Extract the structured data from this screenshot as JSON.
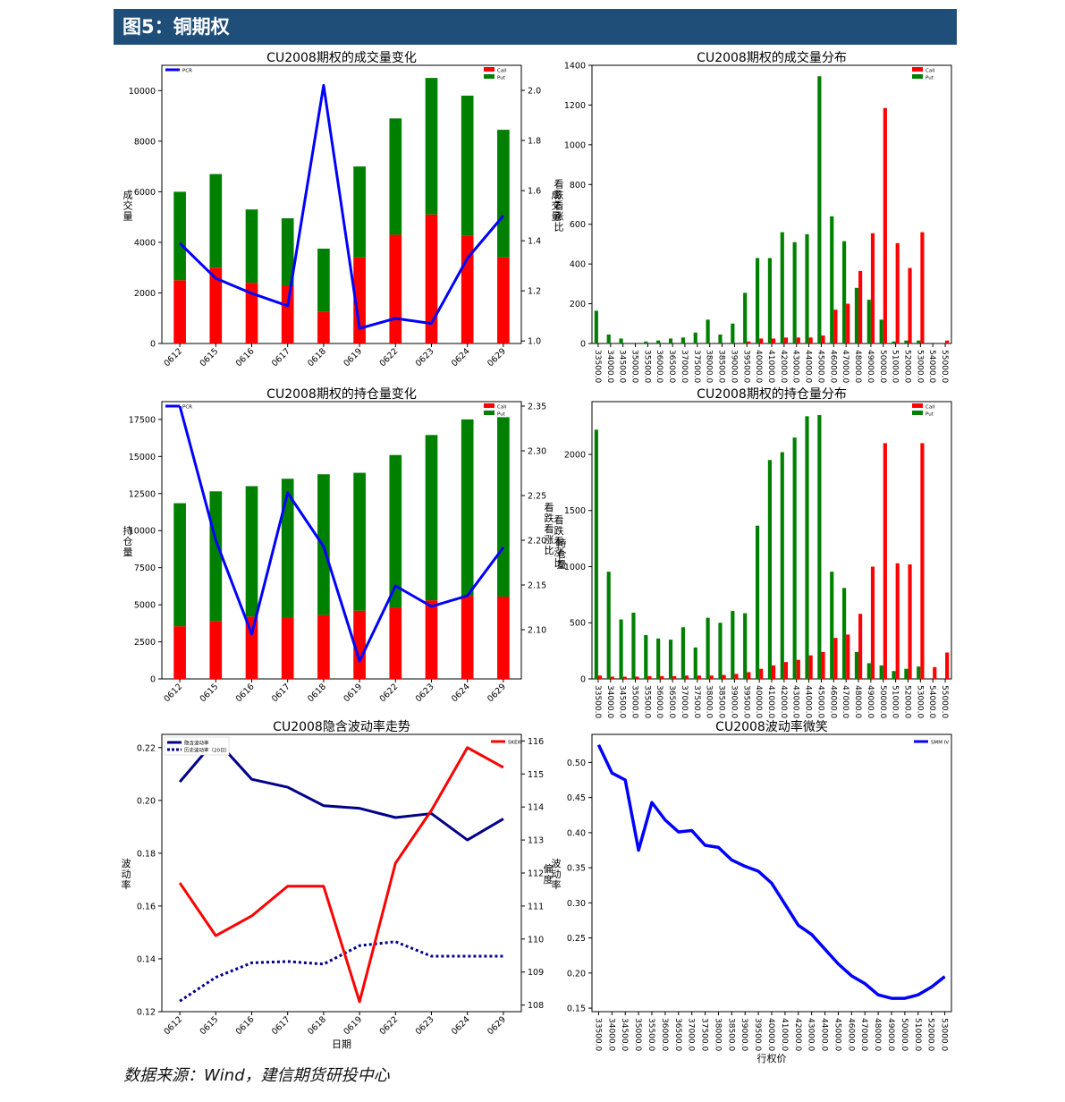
{
  "header": {
    "title": "图5：铜期权"
  },
  "footer": {
    "source": "数据来源：Wind，建信期货研投中心"
  },
  "colors": {
    "call": "#ff0000",
    "put": "#008000",
    "line": "#0000ff",
    "navy": "#00008b",
    "red": "#ff0000",
    "header_bg": "#1f4e79"
  },
  "chart_data": [
    {
      "id": "volume_change",
      "type": "bar",
      "title": "CU2008期权的成交量变化",
      "xlabel": "",
      "ylabel": "成交量",
      "ylabel_right": "看跌看涨比",
      "categories": [
        "0612",
        "0615",
        "0616",
        "0617",
        "0618",
        "0619",
        "0622",
        "0623",
        "0624",
        "0629"
      ],
      "ylim": [
        0,
        11000
      ],
      "yticks": [
        0,
        2000,
        4000,
        6000,
        8000,
        10000
      ],
      "ylim_right": [
        0.99,
        2.1
      ],
      "yticks_right": [
        "1.0",
        "1.2",
        "1.4",
        "1.6",
        "1.8",
        "2.0"
      ],
      "series": [
        {
          "name": "Call",
          "values": [
            2500,
            3000,
            2400,
            2300,
            1250,
            3400,
            4300,
            5100,
            4250,
            3400
          ]
        },
        {
          "name": "Put",
          "values": [
            3500,
            3700,
            2900,
            2650,
            2500,
            3600,
            4600,
            5400,
            5550,
            5050
          ]
        }
      ],
      "line": {
        "name": "PCR",
        "values": [
          1.39,
          1.25,
          1.19,
          1.14,
          2.02,
          1.05,
          1.09,
          1.07,
          1.33,
          1.5
        ]
      },
      "legend_left": "top-left",
      "legend_right": "top-right"
    },
    {
      "id": "volume_dist",
      "type": "bar",
      "title": "CU2008期权的成交量分布",
      "xlabel": "",
      "ylabel": "成交量",
      "categories": [
        "33500.0",
        "34000.0",
        "34500.0",
        "35000.0",
        "35500.0",
        "36000.0",
        "36500.0",
        "37000.0",
        "37500.0",
        "38000.0",
        "38500.0",
        "39000.0",
        "39500.0",
        "40000.0",
        "41000.0",
        "42000.0",
        "43000.0",
        "44000.0",
        "45000.0",
        "46000.0",
        "47000.0",
        "48000.0",
        "49000.0",
        "50000.0",
        "51000.0",
        "52000.0",
        "53000.0",
        "54000.0",
        "55000.0"
      ],
      "ylim": [
        0,
        1400
      ],
      "yticks": [
        0,
        200,
        400,
        600,
        800,
        1000,
        1200,
        1400
      ],
      "series": [
        {
          "name": "Call",
          "values": [
            0,
            0,
            0,
            0,
            0,
            0,
            0,
            0,
            0,
            0,
            0,
            0,
            10,
            25,
            25,
            30,
            30,
            30,
            40,
            170,
            200,
            365,
            555,
            1185,
            505,
            380,
            560,
            0,
            15
          ]
        },
        {
          "name": "Put",
          "values": [
            165,
            45,
            25,
            0,
            10,
            15,
            25,
            30,
            55,
            120,
            45,
            100,
            255,
            430,
            430,
            560,
            510,
            550,
            1345,
            640,
            515,
            280,
            220,
            120,
            10,
            15,
            15,
            0,
            0
          ]
        }
      ],
      "legend": "top-right"
    },
    {
      "id": "oi_change",
      "type": "bar",
      "title": "CU2008期权的持仓量变化",
      "xlabel": "",
      "ylabel": "持仓量",
      "ylabel_right": "看跌看涨比",
      "categories": [
        "0612",
        "0615",
        "0616",
        "0617",
        "0618",
        "0619",
        "0622",
        "0623",
        "0624",
        "0629"
      ],
      "ylim": [
        0,
        18700
      ],
      "yticks": [
        0,
        2500,
        5000,
        7500,
        10000,
        12500,
        15000,
        17500
      ],
      "ylim_right": [
        2.045,
        2.355
      ],
      "yticks_right": [
        "2.10",
        "2.15",
        "2.20",
        "2.25",
        "2.30",
        "2.35"
      ],
      "series": [
        {
          "name": "Call",
          "values": [
            3550,
            3900,
            4200,
            4100,
            4300,
            4600,
            4800,
            5300,
            5600,
            5550
          ]
        },
        {
          "name": "Put",
          "values": [
            8300,
            8750,
            8800,
            9400,
            9500,
            9300,
            10300,
            11150,
            11900,
            12100
          ]
        }
      ],
      "line": {
        "name": "PCR",
        "values": [
          2.35,
          2.2,
          2.095,
          2.253,
          2.193,
          2.065,
          2.149,
          2.126,
          2.138,
          2.192
        ]
      },
      "legend_left": "top-left",
      "legend_right": "top-right"
    },
    {
      "id": "oi_dist",
      "type": "bar",
      "title": "CU2008期权的持仓量分布",
      "xlabel": "",
      "ylabel": "持仓量",
      "ylabel2": "看跌看涨比",
      "categories": [
        "33500.0",
        "34000.0",
        "34500.0",
        "35000.0",
        "35500.0",
        "36000.0",
        "36500.0",
        "37000.0",
        "37500.0",
        "38000.0",
        "38500.0",
        "39000.0",
        "39500.0",
        "40000.0",
        "41000.0",
        "42000.0",
        "43000.0",
        "44000.0",
        "45000.0",
        "46000.0",
        "47000.0",
        "48000.0",
        "49000.0",
        "50000.0",
        "51000.0",
        "52000.0",
        "53000.0",
        "54000.0",
        "55000.0"
      ],
      "ylim": [
        0,
        2470
      ],
      "yticks": [
        0,
        500,
        1000,
        1500,
        2000
      ],
      "series": [
        {
          "name": "Call",
          "values": [
            30,
            20,
            20,
            20,
            25,
            25,
            25,
            30,
            30,
            30,
            35,
            45,
            60,
            90,
            120,
            150,
            170,
            210,
            240,
            365,
            395,
            580,
            1000,
            2100,
            1030,
            1020,
            2100,
            105,
            235
          ]
        },
        {
          "name": "Put",
          "values": [
            2220,
            955,
            530,
            590,
            390,
            360,
            350,
            460,
            280,
            545,
            500,
            605,
            585,
            1365,
            1950,
            2020,
            2150,
            2340,
            2350,
            955,
            810,
            240,
            140,
            120,
            70,
            90,
            110,
            0,
            0
          ]
        }
      ],
      "legend": "top-right"
    },
    {
      "id": "iv_trend",
      "type": "line",
      "title": "CU2008隐含波动率走势",
      "xlabel": "日期",
      "ylabel": "波动率",
      "ylabel_right": "偏度",
      "categories": [
        "0612",
        "0615",
        "0616",
        "0617",
        "0618",
        "0619",
        "0622",
        "0623",
        "0624",
        "0629"
      ],
      "ylim": [
        0.12,
        0.225
      ],
      "yticks": [
        "0.12",
        "0.14",
        "0.16",
        "0.18",
        "0.20",
        "0.22"
      ],
      "ylim_right": [
        107.8,
        116.2
      ],
      "yticks_right": [
        108,
        109,
        110,
        111,
        112,
        113,
        114,
        115,
        116
      ],
      "series": [
        {
          "name": "隐含波动率",
          "axis": "left",
          "values": [
            0.207,
            0.223,
            0.208,
            0.205,
            0.198,
            0.197,
            0.1935,
            0.195,
            0.185,
            0.193
          ]
        },
        {
          "name": "历史波动率（20日）",
          "axis": "left",
          "values": [
            0.124,
            0.133,
            0.1385,
            0.139,
            0.138,
            0.145,
            0.1465,
            0.141,
            0.141,
            0.141
          ]
        },
        {
          "name": "SKEW",
          "axis": "right",
          "values": [
            111.7,
            110.1,
            110.7,
            111.6,
            111.6,
            108.1,
            112.3,
            113.9,
            115.8,
            115.2
          ]
        }
      ],
      "legend_left": "top-left",
      "legend_right": "top-right"
    },
    {
      "id": "vol_smile",
      "type": "line",
      "title": "CU2008波动率微笑",
      "xlabel": "行权价",
      "ylabel": "波动率",
      "categories": [
        "33500.0",
        "34000.0",
        "34500.0",
        "35000.0",
        "35500.0",
        "36000.0",
        "36500.0",
        "37000.0",
        "37500.0",
        "38000.0",
        "38500.0",
        "39000.0",
        "39500.0",
        "40000.0",
        "41000.0",
        "42000.0",
        "43000.0",
        "44000.0",
        "45000.0",
        "46000.0",
        "47000.0",
        "48000.0",
        "49000.0",
        "50000.0",
        "51000.0",
        "52000.0",
        "53000.0"
      ],
      "ylim": [
        0.145,
        0.54
      ],
      "yticks": [
        "0.15",
        "0.20",
        "0.25",
        "0.30",
        "0.35",
        "0.40",
        "0.45",
        "0.50"
      ],
      "series": [
        {
          "name": "SMM IV",
          "values": [
            0.525,
            0.485,
            0.475,
            0.375,
            0.443,
            0.418,
            0.401,
            0.403,
            0.382,
            0.379,
            0.361,
            0.352,
            0.345,
            0.328,
            0.298,
            0.268,
            0.255,
            0.234,
            0.213,
            0.196,
            0.185,
            0.169,
            0.164,
            0.164,
            0.169,
            0.18,
            0.195
          ]
        }
      ],
      "legend": "top-right"
    }
  ]
}
